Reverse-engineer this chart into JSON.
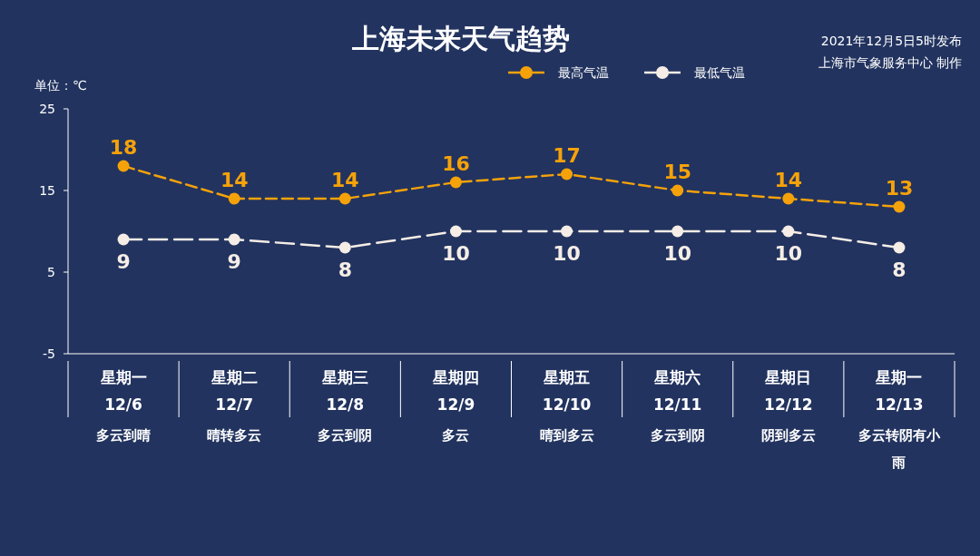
{
  "chart_data": {
    "type": "line",
    "title": "上海未来天气趋势",
    "ylabel": "单位：℃",
    "annotations": [
      "2021年12月5日5时发布",
      "上海市气象服务中心 制作"
    ],
    "categories": [
      "星期一\n12/6\n多云到晴",
      "星期二\n12/7\n晴转多云",
      "星期三\n12/8\n多云到阴",
      "星期四\n12/9\n多云",
      "星期五\n12/10\n晴到多云",
      "星期六\n12/11\n多云到阴",
      "星期日\n12/12\n阴到多云",
      "星期一\n12/13\n多云转阴有小雨"
    ],
    "series": [
      {
        "name": "最高气温",
        "color": "#f5a20a",
        "values": [
          18,
          14,
          14,
          16,
          17,
          15,
          14,
          13
        ]
      },
      {
        "name": "最低气温",
        "color": "#f5ede6",
        "values": [
          9,
          9,
          8,
          10,
          10,
          10,
          10,
          8
        ]
      }
    ],
    "ylim": [
      -5,
      25
    ],
    "yticks": [
      -5,
      5,
      15,
      25
    ],
    "grid": false,
    "legend": "top",
    "marker": "circle",
    "line_style": "dashed",
    "data_labels": true
  }
}
